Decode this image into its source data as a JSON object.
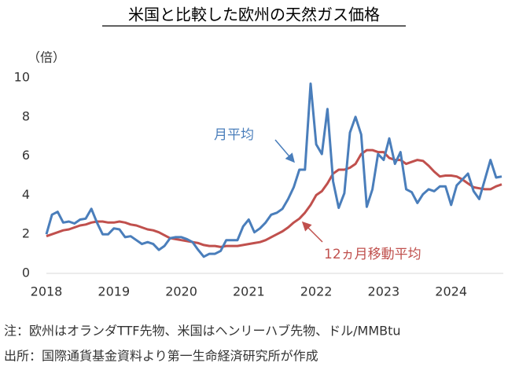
{
  "chart_data": {
    "type": "line",
    "title": "米国と比較した欧州の天然ガス価格",
    "y_label": "（倍）",
    "categories": [
      "2018",
      null,
      null,
      null,
      null,
      null,
      null,
      null,
      null,
      null,
      null,
      null,
      "2019",
      null,
      null,
      null,
      null,
      null,
      null,
      null,
      null,
      null,
      null,
      null,
      "2020",
      null,
      null,
      null,
      null,
      null,
      null,
      null,
      null,
      null,
      null,
      null,
      "2021",
      null,
      null,
      null,
      null,
      null,
      null,
      null,
      null,
      null,
      null,
      null,
      "2022",
      null,
      null,
      null,
      null,
      null,
      null,
      null,
      null,
      null,
      null,
      null,
      "2023",
      null,
      null,
      null,
      null,
      null,
      null,
      null,
      null,
      null,
      null,
      null,
      "2024",
      null,
      null,
      null,
      null,
      null,
      null,
      null,
      null,
      null
    ],
    "series": [
      {
        "name": "月平均",
        "color": "#4a7ebb",
        "values": [
          2.0,
          3.0,
          3.15,
          2.6,
          2.65,
          2.55,
          2.75,
          2.8,
          3.3,
          2.6,
          2.0,
          2.0,
          2.3,
          2.25,
          1.85,
          1.9,
          1.7,
          1.5,
          1.6,
          1.5,
          1.2,
          1.4,
          1.8,
          1.85,
          1.85,
          1.75,
          1.6,
          1.2,
          0.85,
          1.0,
          1.0,
          1.15,
          1.7,
          1.7,
          1.7,
          2.4,
          2.75,
          2.1,
          2.3,
          2.6,
          3.0,
          3.1,
          3.3,
          3.8,
          4.4,
          5.3,
          5.3,
          9.7,
          6.6,
          6.1,
          8.4,
          4.7,
          3.35,
          4.1,
          7.2,
          8.0,
          7.1,
          3.4,
          4.3,
          6.1,
          5.8,
          6.9,
          5.6,
          6.2,
          4.3,
          4.15,
          3.6,
          4.05,
          4.3,
          4.2,
          4.45,
          4.45,
          3.5,
          4.5,
          4.8,
          5.1,
          4.2,
          3.8,
          4.8,
          5.8,
          4.9,
          4.95
        ]
      },
      {
        "name": "12ヵ月移動平均",
        "color": "#c0504d",
        "values": [
          1.9,
          2.0,
          2.1,
          2.2,
          2.25,
          2.35,
          2.45,
          2.5,
          2.6,
          2.65,
          2.65,
          2.6,
          2.6,
          2.65,
          2.6,
          2.5,
          2.45,
          2.35,
          2.25,
          2.2,
          2.1,
          1.95,
          1.8,
          1.75,
          1.7,
          1.65,
          1.6,
          1.55,
          1.45,
          1.4,
          1.4,
          1.35,
          1.4,
          1.4,
          1.4,
          1.45,
          1.5,
          1.55,
          1.6,
          1.7,
          1.85,
          2.0,
          2.15,
          2.35,
          2.6,
          2.8,
          3.1,
          3.5,
          4.0,
          4.2,
          4.6,
          5.1,
          5.3,
          5.3,
          5.4,
          5.6,
          6.1,
          6.3,
          6.3,
          6.2,
          6.2,
          5.9,
          5.8,
          5.8,
          5.6,
          5.7,
          5.8,
          5.75,
          5.5,
          5.2,
          4.95,
          5.0,
          5.0,
          4.95,
          4.8,
          4.6,
          4.4,
          4.35,
          4.3,
          4.3,
          4.45,
          4.55
        ]
      }
    ],
    "ylim": [
      0,
      10
    ],
    "yticks": [
      0,
      2,
      4,
      6,
      8,
      10
    ],
    "grid": false,
    "notes": [
      "注：欧州はオランダTTF先物、米国はヘンリーハブ先物、ドル/MMBtu",
      "出所：国際通貨基金資料より第一生命経済研究所が作成"
    ]
  }
}
